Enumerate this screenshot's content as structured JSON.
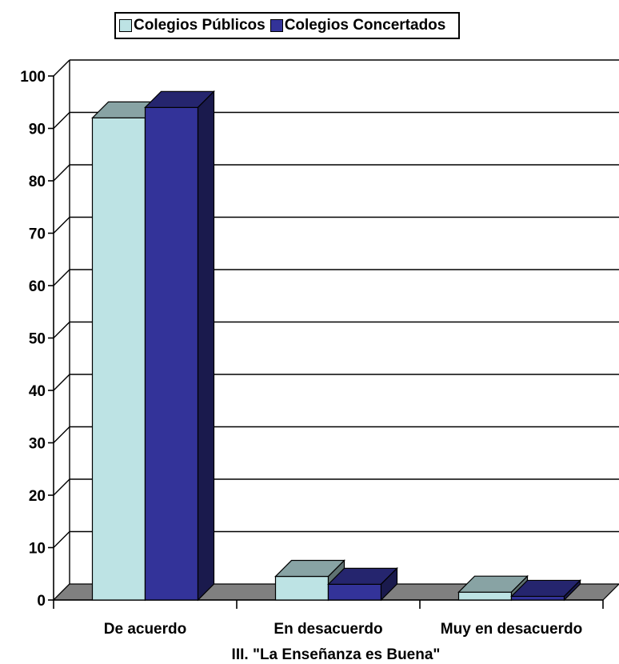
{
  "chart_data": {
    "type": "bar",
    "categories": [
      "De acuerdo",
      "En desacuerdo",
      "Muy en desacuerdo"
    ],
    "series": [
      {
        "name": "Colegios Públicos",
        "values": [
          92,
          4.5,
          1.5
        ],
        "color": "#bde3e4"
      },
      {
        "name": "Colegios Concertados",
        "values": [
          94,
          3,
          0.7
        ],
        "color": "#333399"
      }
    ],
    "title": "",
    "xlabel": "III.  \"La Enseñanza es Buena\"",
    "ylabel": "",
    "ylim": [
      0,
      100
    ],
    "yticks": [
      0,
      10,
      20,
      30,
      40,
      50,
      60,
      70,
      80,
      90,
      100
    ],
    "grid": true,
    "legend": "top",
    "style": "3d-clustered-column"
  }
}
